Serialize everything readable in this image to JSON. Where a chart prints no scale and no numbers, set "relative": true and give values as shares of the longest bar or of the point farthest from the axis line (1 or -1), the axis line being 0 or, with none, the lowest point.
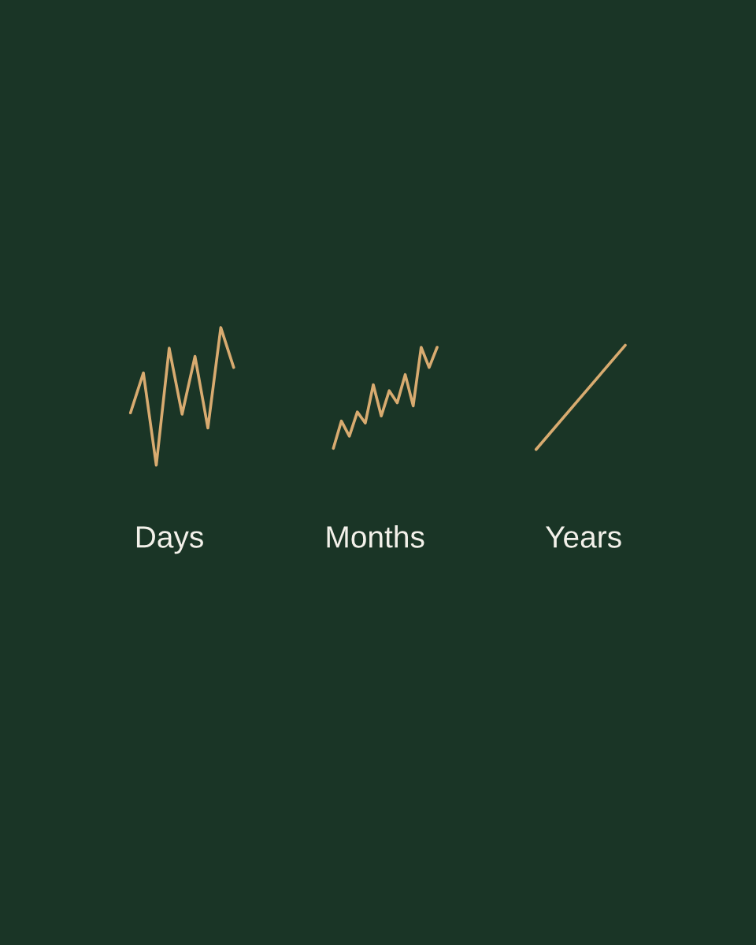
{
  "chart_data": [
    {
      "type": "line",
      "xlabel": "Days",
      "categories": [
        null,
        null,
        null,
        null,
        null,
        null,
        null,
        null,
        null
      ],
      "values": [
        0.38,
        0.67,
        0,
        0.85,
        0.37,
        0.79,
        0.27,
        1,
        0.71
      ],
      "color": "#d8ab70",
      "relative": true,
      "line_style": "solid"
    },
    {
      "type": "line",
      "xlabel": "Months",
      "categories": [
        null,
        null,
        null,
        null,
        null,
        null,
        null,
        null,
        null,
        null,
        null,
        null,
        null,
        null
      ],
      "values": [
        0,
        0.27,
        0.12,
        0.36,
        0.25,
        0.63,
        0.32,
        0.57,
        0.45,
        0.73,
        0.42,
        1,
        0.8,
        1
      ],
      "color": "#d8ab70",
      "relative": true,
      "line_style": "solid"
    },
    {
      "type": "line",
      "xlabel": "Years",
      "categories": [
        null,
        null
      ],
      "values": [
        0,
        1
      ],
      "color": "#d8ab70",
      "relative": true,
      "line_style": "solid"
    }
  ]
}
